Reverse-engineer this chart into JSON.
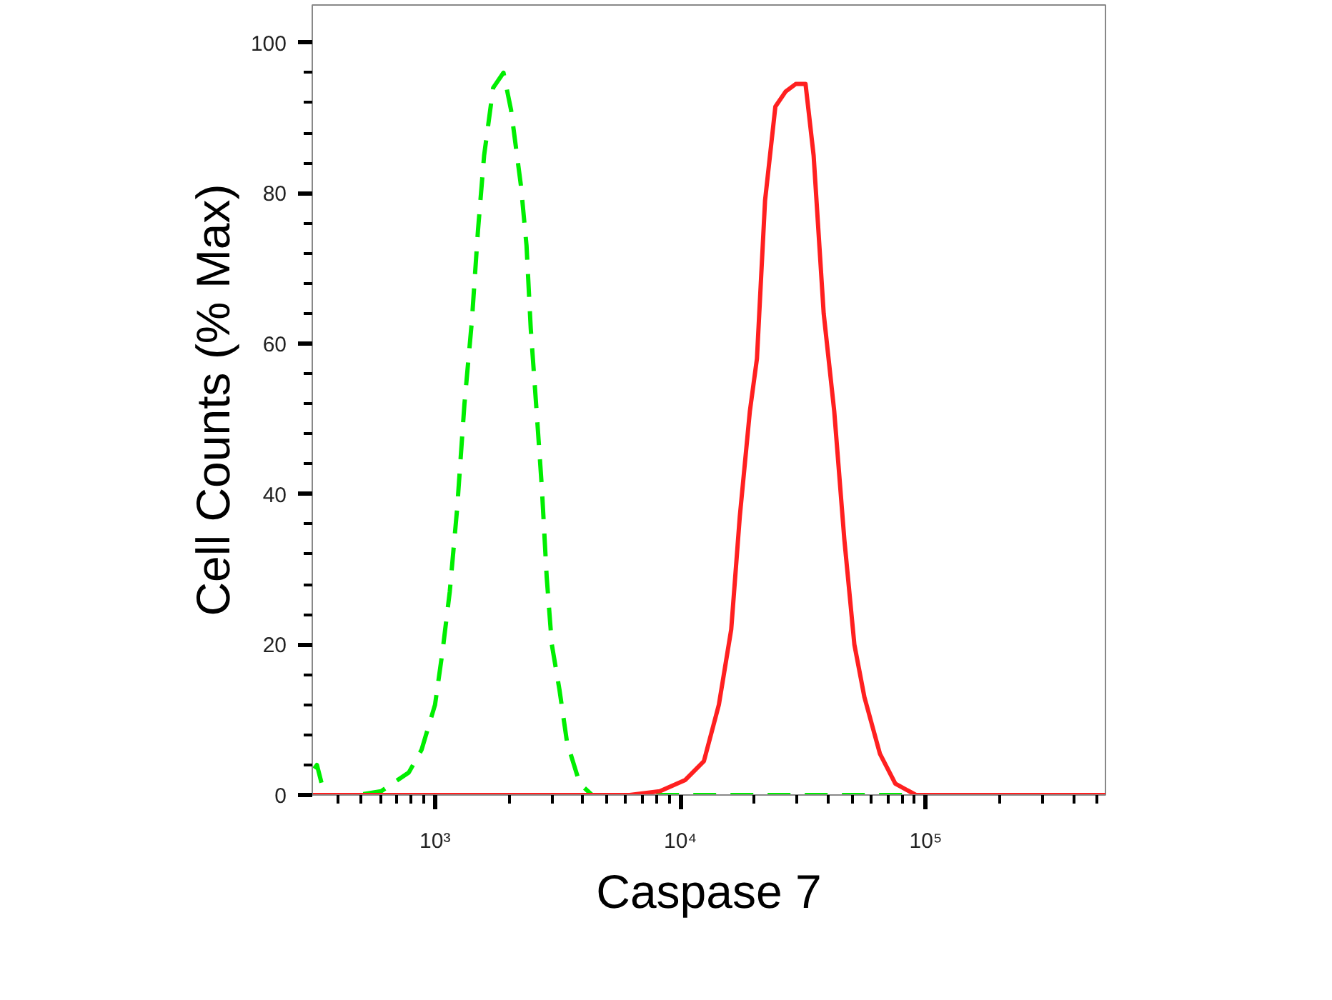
{
  "chart_data": {
    "type": "line",
    "xlabel": "Caspase 7",
    "ylabel": "Cell Counts (% Max)",
    "log": "x",
    "xlim": [
      316,
      540000
    ],
    "xticks": [
      {
        "value": 1000,
        "label": "10³"
      },
      {
        "value": 10000,
        "label": "10⁴"
      },
      {
        "value": 100000,
        "label": "10⁵"
      }
    ],
    "ylim": [
      0,
      105
    ],
    "yticks": [
      0,
      20,
      40,
      60,
      80,
      100
    ],
    "grid": false,
    "marker": "none",
    "series": [
      {
        "color": "#00ee00",
        "line_style": "dashed",
        "x": [
          322,
          330,
          355,
          484,
          603,
          782,
          881,
          1000,
          1072,
          1148,
          1230,
          1318,
          1413,
          1496,
          1585,
          1726,
          1901,
          2042,
          2239,
          2360,
          2455,
          2594,
          2723,
          2851,
          2992,
          3214,
          3451,
          3890,
          4365,
          540000
        ],
        "values": [
          3.5,
          4,
          0,
          0,
          0.5,
          3,
          6,
          12,
          19,
          27,
          38,
          52,
          63,
          75,
          85,
          94,
          96,
          91,
          81,
          73,
          62,
          51,
          41,
          29,
          20,
          14,
          7,
          1.5,
          0,
          0
        ]
      },
      {
        "color": "#ff2020",
        "line_style": "solid",
        "x": [
          316,
          6209,
          8241,
          10470,
          12470,
          14350,
          16110,
          17460,
          19190,
          20510,
          22130,
          24380,
          26850,
          29510,
          32360,
          34910,
          38370,
          42360,
          46560,
          51170,
          56230,
          65010,
          75160,
          91200,
          540000
        ],
        "values": [
          0,
          0,
          0.5,
          2,
          4.5,
          12,
          22,
          37,
          51,
          58,
          79,
          91.5,
          93.5,
          94.5,
          94.5,
          85,
          64,
          51,
          34,
          20,
          13,
          5.5,
          1.5,
          0,
          0
        ]
      }
    ]
  }
}
